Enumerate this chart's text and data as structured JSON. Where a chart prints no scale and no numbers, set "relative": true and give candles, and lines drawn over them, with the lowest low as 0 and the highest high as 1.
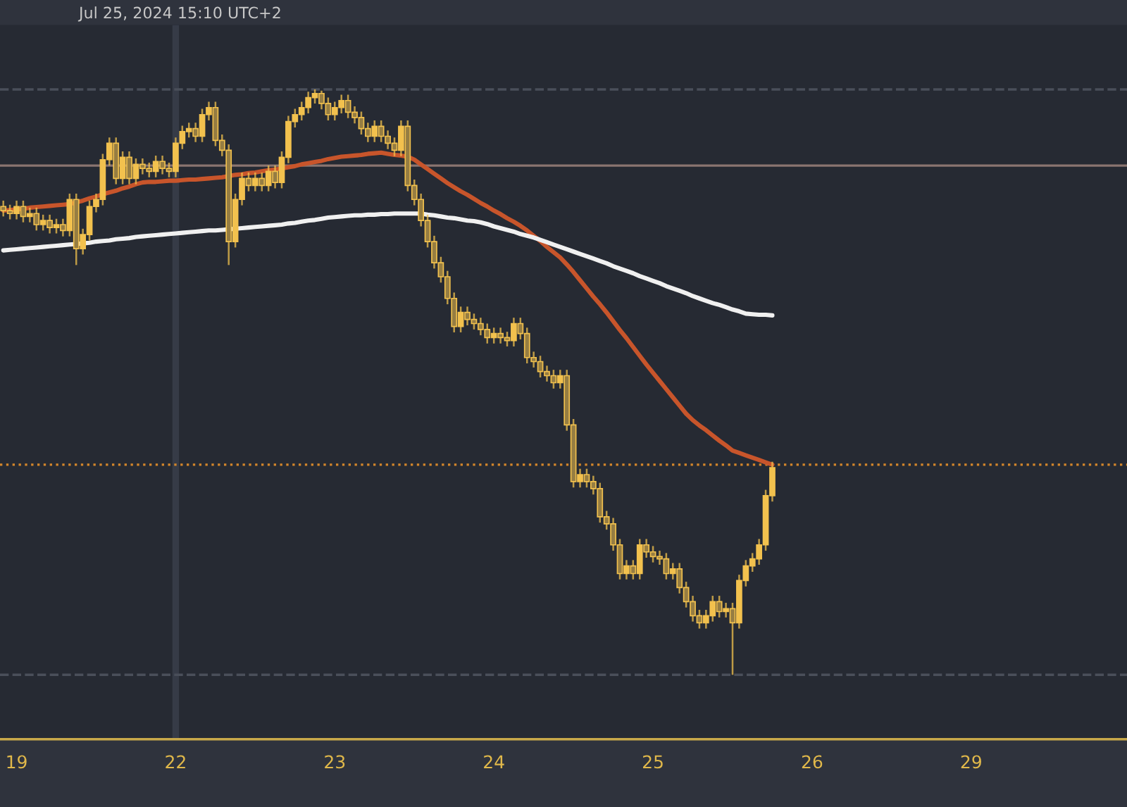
{
  "chart_data": {
    "type": "candlestick",
    "relative": true,
    "color": "#f2c14e",
    "annotations": [
      "Jul 25, 2024 15:10 UTC+2"
    ],
    "categories": [
      null,
      null,
      "19",
      null,
      null,
      null,
      null,
      null,
      null,
      null,
      null,
      null,
      null,
      null,
      null,
      null,
      null,
      null,
      null,
      null,
      null,
      null,
      null,
      null,
      null,
      null,
      "22",
      null,
      null,
      null,
      null,
      null,
      null,
      null,
      null,
      null,
      null,
      null,
      null,
      null,
      null,
      null,
      null,
      null,
      null,
      null,
      null,
      null,
      null,
      null,
      "23",
      null,
      null,
      null,
      null,
      null,
      null,
      null,
      null,
      null,
      null,
      null,
      null,
      null,
      null,
      null,
      null,
      null,
      null,
      null,
      null,
      null,
      null,
      null,
      "24",
      null,
      null,
      null,
      null,
      null,
      null,
      null,
      null,
      null,
      null,
      null,
      null,
      null,
      null,
      null,
      null,
      null,
      null,
      null,
      null,
      null,
      null,
      null,
      "25",
      null,
      null,
      null,
      null,
      null,
      null,
      null,
      null,
      null,
      null,
      null,
      null,
      null,
      null,
      null,
      null,
      null,
      null,
      null,
      null,
      null,
      null,
      null,
      "26",
      null,
      null,
      null,
      null,
      null,
      null,
      null,
      null,
      null,
      null,
      null,
      null,
      null,
      null,
      null,
      null,
      null,
      null,
      null,
      null,
      null,
      null,
      null,
      "29",
      null,
      null,
      null,
      null,
      null,
      null,
      null,
      null,
      null,
      null,
      null,
      null,
      null,
      null,
      null,
      null,
      null,
      null,
      null,
      null,
      null,
      null,
      null
    ],
    "ohlc": [
      [
        0.8,
        0.81,
        0.783,
        0.793
      ],
      [
        0.793,
        0.803,
        0.778,
        0.788
      ],
      [
        0.788,
        0.81,
        0.778,
        0.8
      ],
      [
        0.8,
        0.81,
        0.773,
        0.783
      ],
      [
        0.783,
        0.798,
        0.773,
        0.788
      ],
      [
        0.788,
        0.798,
        0.759,
        0.769
      ],
      [
        0.769,
        0.786,
        0.759,
        0.776
      ],
      [
        0.776,
        0.786,
        0.754,
        0.764
      ],
      [
        0.764,
        0.779,
        0.754,
        0.769
      ],
      [
        0.769,
        0.779,
        0.749,
        0.759
      ],
      [
        0.759,
        0.822,
        0.749,
        0.812
      ],
      [
        0.812,
        0.822,
        0.7,
        0.728
      ],
      [
        0.728,
        0.762,
        0.718,
        0.752
      ],
      [
        0.752,
        0.81,
        0.742,
        0.8
      ],
      [
        0.8,
        0.822,
        0.79,
        0.812
      ],
      [
        0.812,
        0.89,
        0.802,
        0.88
      ],
      [
        0.88,
        0.918,
        0.87,
        0.908
      ],
      [
        0.908,
        0.918,
        0.838,
        0.848
      ],
      [
        0.848,
        0.894,
        0.838,
        0.884
      ],
      [
        0.884,
        0.894,
        0.838,
        0.848
      ],
      [
        0.848,
        0.882,
        0.838,
        0.872
      ],
      [
        0.872,
        0.882,
        0.855,
        0.865
      ],
      [
        0.865,
        0.875,
        0.85,
        0.86
      ],
      [
        0.86,
        0.887,
        0.85,
        0.877
      ],
      [
        0.877,
        0.887,
        0.855,
        0.865
      ],
      [
        0.865,
        0.875,
        0.85,
        0.86
      ],
      [
        0.86,
        0.918,
        0.85,
        0.908
      ],
      [
        0.908,
        0.938,
        0.898,
        0.928
      ],
      [
        0.928,
        0.943,
        0.918,
        0.933
      ],
      [
        0.933,
        0.943,
        0.91,
        0.92
      ],
      [
        0.92,
        0.967,
        0.91,
        0.957
      ],
      [
        0.957,
        0.979,
        0.947,
        0.969
      ],
      [
        0.969,
        0.979,
        0.903,
        0.913
      ],
      [
        0.913,
        0.923,
        0.886,
        0.896
      ],
      [
        0.896,
        0.906,
        0.7,
        0.74
      ],
      [
        0.74,
        0.822,
        0.73,
        0.812
      ],
      [
        0.812,
        0.858,
        0.802,
        0.848
      ],
      [
        0.848,
        0.858,
        0.826,
        0.836
      ],
      [
        0.836,
        0.858,
        0.826,
        0.848
      ],
      [
        0.848,
        0.858,
        0.826,
        0.836
      ],
      [
        0.836,
        0.87,
        0.826,
        0.86
      ],
      [
        0.86,
        0.87,
        0.831,
        0.841
      ],
      [
        0.841,
        0.894,
        0.831,
        0.884
      ],
      [
        0.884,
        0.955,
        0.874,
        0.945
      ],
      [
        0.945,
        0.967,
        0.935,
        0.957
      ],
      [
        0.957,
        0.979,
        0.947,
        0.969
      ],
      [
        0.969,
        0.996,
        0.959,
        0.986
      ],
      [
        0.986,
        1.0,
        0.976,
        0.993
      ],
      [
        0.993,
        0.998,
        0.966,
        0.976
      ],
      [
        0.976,
        0.986,
        0.947,
        0.957
      ],
      [
        0.957,
        0.979,
        0.947,
        0.969
      ],
      [
        0.969,
        0.991,
        0.959,
        0.981
      ],
      [
        0.981,
        0.991,
        0.951,
        0.961
      ],
      [
        0.961,
        0.971,
        0.942,
        0.952
      ],
      [
        0.952,
        0.962,
        0.923,
        0.933
      ],
      [
        0.933,
        0.943,
        0.91,
        0.92
      ],
      [
        0.92,
        0.947,
        0.91,
        0.937
      ],
      [
        0.937,
        0.947,
        0.91,
        0.92
      ],
      [
        0.92,
        0.93,
        0.898,
        0.908
      ],
      [
        0.908,
        0.918,
        0.886,
        0.896
      ],
      [
        0.896,
        0.947,
        0.886,
        0.937
      ],
      [
        0.937,
        0.947,
        0.826,
        0.836
      ],
      [
        0.836,
        0.846,
        0.802,
        0.812
      ],
      [
        0.812,
        0.822,
        0.766,
        0.776
      ],
      [
        0.776,
        0.786,
        0.73,
        0.74
      ],
      [
        0.74,
        0.75,
        0.694,
        0.704
      ],
      [
        0.704,
        0.714,
        0.67,
        0.68
      ],
      [
        0.68,
        0.69,
        0.633,
        0.643
      ],
      [
        0.643,
        0.653,
        0.585,
        0.595
      ],
      [
        0.595,
        0.629,
        0.585,
        0.619
      ],
      [
        0.619,
        0.629,
        0.597,
        0.607
      ],
      [
        0.607,
        0.617,
        0.59,
        0.6
      ],
      [
        0.6,
        0.61,
        0.58,
        0.59
      ],
      [
        0.59,
        0.6,
        0.566,
        0.576
      ],
      [
        0.576,
        0.593,
        0.566,
        0.583
      ],
      [
        0.583,
        0.593,
        0.566,
        0.576
      ],
      [
        0.576,
        0.586,
        0.561,
        0.571
      ],
      [
        0.571,
        0.61,
        0.561,
        0.6
      ],
      [
        0.6,
        0.61,
        0.573,
        0.583
      ],
      [
        0.583,
        0.593,
        0.532,
        0.542
      ],
      [
        0.542,
        0.552,
        0.525,
        0.535
      ],
      [
        0.535,
        0.545,
        0.508,
        0.518
      ],
      [
        0.518,
        0.528,
        0.501,
        0.511
      ],
      [
        0.511,
        0.521,
        0.489,
        0.499
      ],
      [
        0.499,
        0.521,
        0.489,
        0.511
      ],
      [
        0.511,
        0.521,
        0.417,
        0.427
      ],
      [
        0.427,
        0.437,
        0.32,
        0.33
      ],
      [
        0.33,
        0.352,
        0.32,
        0.342
      ],
      [
        0.342,
        0.352,
        0.32,
        0.33
      ],
      [
        0.33,
        0.34,
        0.308,
        0.318
      ],
      [
        0.318,
        0.328,
        0.26,
        0.27
      ],
      [
        0.27,
        0.28,
        0.248,
        0.258
      ],
      [
        0.258,
        0.268,
        0.212,
        0.222
      ],
      [
        0.222,
        0.232,
        0.163,
        0.173
      ],
      [
        0.173,
        0.196,
        0.163,
        0.186
      ],
      [
        0.186,
        0.196,
        0.163,
        0.173
      ],
      [
        0.173,
        0.232,
        0.163,
        0.222
      ],
      [
        0.222,
        0.232,
        0.2,
        0.21
      ],
      [
        0.21,
        0.22,
        0.192,
        0.202
      ],
      [
        0.202,
        0.212,
        0.188,
        0.198
      ],
      [
        0.198,
        0.208,
        0.163,
        0.173
      ],
      [
        0.173,
        0.191,
        0.163,
        0.181
      ],
      [
        0.181,
        0.191,
        0.139,
        0.149
      ],
      [
        0.149,
        0.159,
        0.115,
        0.125
      ],
      [
        0.125,
        0.135,
        0.091,
        0.101
      ],
      [
        0.101,
        0.111,
        0.079,
        0.089
      ],
      [
        0.089,
        0.111,
        0.079,
        0.101
      ],
      [
        0.101,
        0.135,
        0.091,
        0.125
      ],
      [
        0.125,
        0.135,
        0.098,
        0.108
      ],
      [
        0.108,
        0.123,
        0.098,
        0.113
      ],
      [
        0.113,
        0.123,
        0.0,
        0.089
      ],
      [
        0.089,
        0.171,
        0.079,
        0.161
      ],
      [
        0.161,
        0.196,
        0.151,
        0.186
      ],
      [
        0.186,
        0.208,
        0.176,
        0.198
      ],
      [
        0.198,
        0.232,
        0.188,
        0.222
      ],
      [
        0.222,
        0.316,
        0.212,
        0.306
      ],
      [
        0.306,
        0.364,
        0.296,
        0.354
      ],
      null,
      null,
      null,
      null,
      null,
      null,
      null,
      null,
      null,
      null,
      null,
      null,
      null,
      null,
      null,
      null,
      null,
      null,
      null,
      null,
      null,
      null,
      null,
      null,
      null,
      null,
      null,
      null,
      null,
      null,
      null,
      null,
      null,
      null,
      null,
      null,
      null,
      null,
      null,
      null,
      null,
      null,
      null,
      null,
      null,
      null,
      null,
      null,
      null,
      null,
      null,
      null,
      null
    ],
    "series": [
      {
        "type": "line",
        "color": "#c8552b",
        "values": [
          0.793,
          0.794,
          0.795,
          0.796,
          0.798,
          0.799,
          0.8,
          0.801,
          0.802,
          0.803,
          0.804,
          0.807,
          0.81,
          0.814,
          0.817,
          0.821,
          0.824,
          0.827,
          0.831,
          0.834,
          0.838,
          0.841,
          0.842,
          0.842,
          0.843,
          0.844,
          0.844,
          0.845,
          0.846,
          0.846,
          0.847,
          0.848,
          0.849,
          0.85,
          0.852,
          0.854,
          0.855,
          0.857,
          0.858,
          0.86,
          0.862,
          0.863,
          0.865,
          0.867,
          0.869,
          0.872,
          0.874,
          0.876,
          0.878,
          0.881,
          0.883,
          0.885,
          0.886,
          0.887,
          0.888,
          0.89,
          0.891,
          0.892,
          0.89,
          0.888,
          0.887,
          0.885,
          0.88,
          0.872,
          0.864,
          0.856,
          0.848,
          0.84,
          0.833,
          0.826,
          0.82,
          0.813,
          0.806,
          0.8,
          0.793,
          0.787,
          0.78,
          0.774,
          0.767,
          0.759,
          0.75,
          0.741,
          0.731,
          0.722,
          0.713,
          0.701,
          0.688,
          0.674,
          0.66,
          0.646,
          0.633,
          0.619,
          0.604,
          0.589,
          0.575,
          0.56,
          0.545,
          0.53,
          0.516,
          0.502,
          0.488,
          0.474,
          0.46,
          0.446,
          0.435,
          0.426,
          0.418,
          0.409,
          0.4,
          0.392,
          0.383,
          0.379,
          0.375,
          0.371,
          0.367,
          0.363,
          0.359,
          null,
          null,
          null,
          null,
          null,
          null,
          null,
          null,
          null,
          null,
          null,
          null,
          null,
          null,
          null,
          null,
          null,
          null,
          null,
          null,
          null,
          null,
          null,
          null,
          null,
          null,
          null,
          null,
          null,
          null,
          null,
          null,
          null,
          null,
          null,
          null,
          null,
          null,
          null,
          null,
          null,
          null,
          null,
          null,
          null,
          null,
          null,
          null,
          null,
          null,
          null,
          null,
          null
        ]
      },
      {
        "type": "line",
        "color": "#f0f0f0",
        "values": [
          0.725,
          0.726,
          0.727,
          0.728,
          0.729,
          0.73,
          0.731,
          0.732,
          0.733,
          0.734,
          0.735,
          0.736,
          0.737,
          0.738,
          0.74,
          0.741,
          0.742,
          0.744,
          0.745,
          0.746,
          0.748,
          0.749,
          0.75,
          0.751,
          0.752,
          0.753,
          0.754,
          0.755,
          0.756,
          0.757,
          0.758,
          0.759,
          0.759,
          0.76,
          0.761,
          0.762,
          0.763,
          0.764,
          0.765,
          0.766,
          0.767,
          0.768,
          0.769,
          0.771,
          0.772,
          0.774,
          0.776,
          0.777,
          0.779,
          0.781,
          0.782,
          0.783,
          0.784,
          0.785,
          0.785,
          0.786,
          0.786,
          0.787,
          0.787,
          0.788,
          0.788,
          0.788,
          0.788,
          0.788,
          0.786,
          0.785,
          0.783,
          0.781,
          0.78,
          0.778,
          0.776,
          0.775,
          0.773,
          0.77,
          0.766,
          0.763,
          0.76,
          0.757,
          0.753,
          0.75,
          0.747,
          0.743,
          0.739,
          0.735,
          0.731,
          0.727,
          0.723,
          0.719,
          0.715,
          0.711,
          0.707,
          0.703,
          0.698,
          0.694,
          0.69,
          0.686,
          0.681,
          0.677,
          0.673,
          0.669,
          0.664,
          0.66,
          0.656,
          0.652,
          0.647,
          0.643,
          0.639,
          0.635,
          0.632,
          0.628,
          0.624,
          0.621,
          0.617,
          0.616,
          0.615,
          0.615,
          0.614,
          null,
          null,
          null,
          null,
          null,
          null,
          null,
          null,
          null,
          null,
          null,
          null,
          null,
          null,
          null,
          null,
          null,
          null,
          null,
          null,
          null,
          null,
          null,
          null,
          null,
          null,
          null,
          null,
          null,
          null,
          null,
          null,
          null,
          null,
          null,
          null,
          null,
          null,
          null,
          null,
          null,
          null,
          null,
          null,
          null,
          null,
          null,
          null,
          null,
          null,
          null,
          null,
          null
        ]
      }
    ],
    "tick_labels": "x",
    "ref_lines": [
      {
        "axis": "y",
        "value": 0.87,
        "color": "#8a7570",
        "line_style": "solid"
      },
      {
        "axis": "y",
        "value": 0.359,
        "color": "#d4862a",
        "line_style": "dotted"
      },
      {
        "axis": "y",
        "value": 1.0,
        "color": "#4a4f5a",
        "line_style": "dashed"
      },
      {
        "axis": "y",
        "value": 0.0,
        "color": "#4a4f5a",
        "line_style": "dashed"
      }
    ],
    "bands": [
      {
        "axis": "x",
        "from": "22",
        "to": "22",
        "color": "#363b47"
      }
    ]
  }
}
